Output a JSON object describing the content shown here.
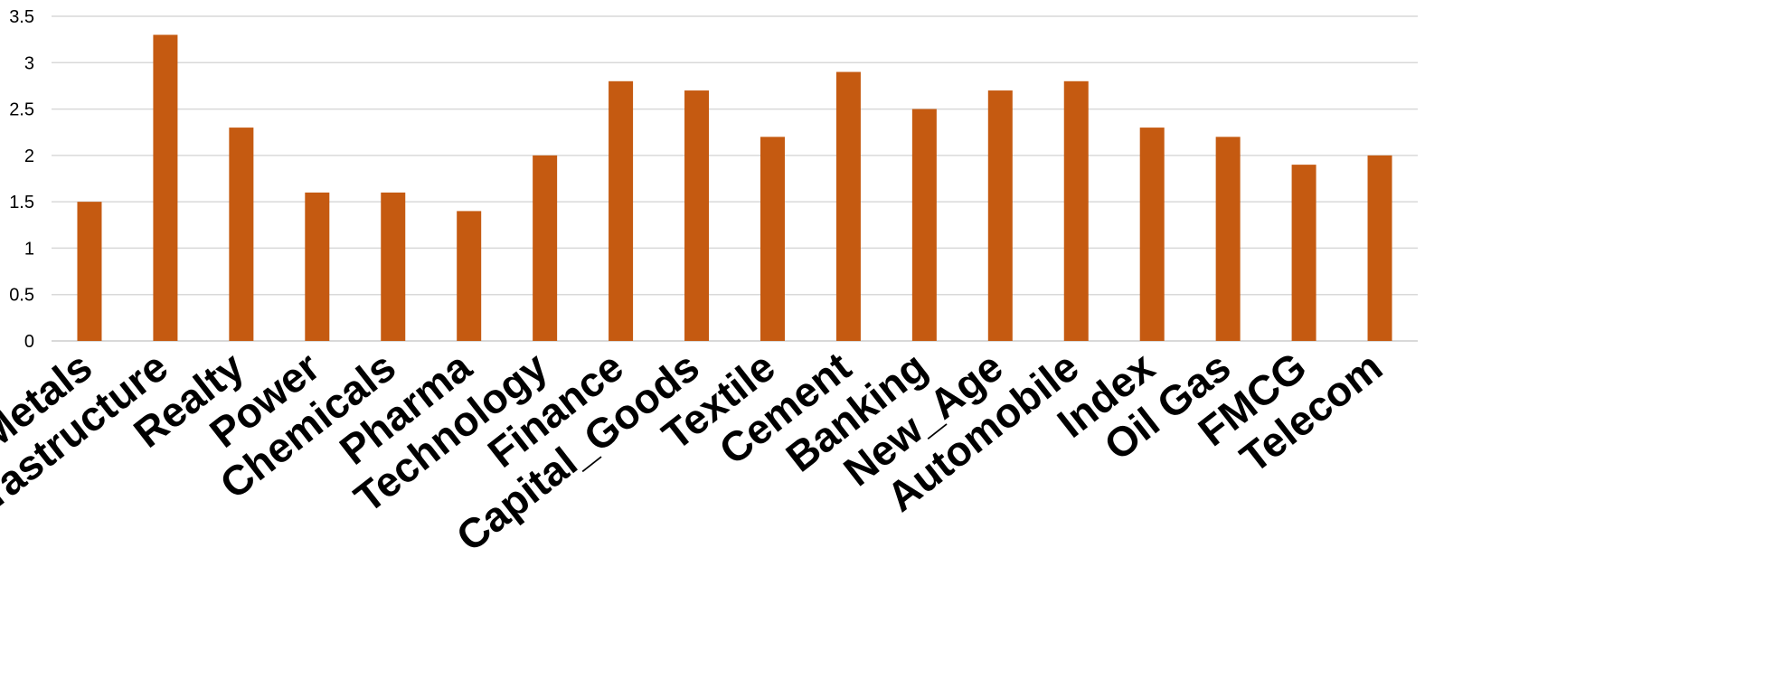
{
  "chart_data": {
    "type": "bar",
    "categories": [
      "Metals",
      "Infrastructure",
      "Realty",
      "Power",
      "Chemicals",
      "Pharma",
      "Technology",
      "Finance",
      "Capital_Goods",
      "Textile",
      "Cement",
      "Banking",
      "New_Age",
      "Automobile",
      "Index",
      "Oil Gas",
      "FMCG",
      "Telecom"
    ],
    "values": [
      1.5,
      3.3,
      2.3,
      1.6,
      1.6,
      1.4,
      2.0,
      2.8,
      2.7,
      2.2,
      2.9,
      2.5,
      2.7,
      2.8,
      2.3,
      2.2,
      1.9,
      2.0
    ],
    "y_ticks": [
      "0",
      "0.5",
      "1",
      "1.5",
      "2",
      "2.5",
      "3",
      "3.5"
    ],
    "ylim": [
      0,
      3.5
    ],
    "grid": true,
    "legend": "none",
    "bar_color": "#C55A11",
    "grid_color": "#D9D9D9"
  }
}
